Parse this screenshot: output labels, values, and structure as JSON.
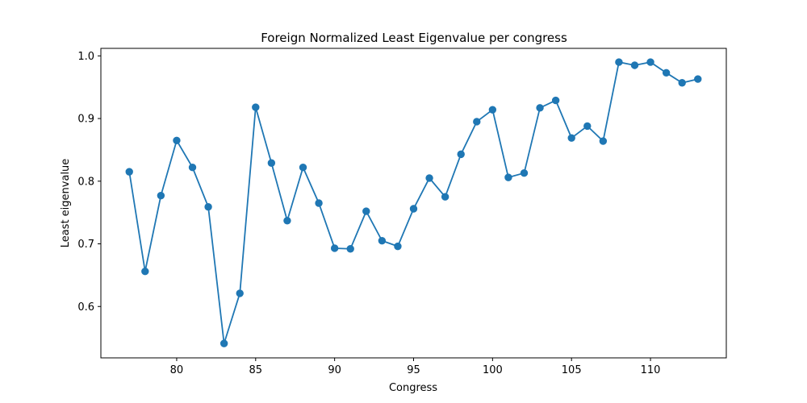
{
  "chart_data": {
    "type": "line",
    "title": "Foreign Normalized Least Eigenvalue per congress",
    "xlabel": "Congress",
    "ylabel": "Least eigenvalue",
    "xlim": [
      75.2,
      114.8
    ],
    "ylim": [
      0.518,
      1.012
    ],
    "xticks": [
      80,
      85,
      90,
      95,
      100,
      105,
      110
    ],
    "yticks": [
      0.6,
      0.7,
      0.8,
      0.9,
      1.0
    ],
    "ytick_labels": [
      "0.6",
      "0.7",
      "0.8",
      "0.9",
      "1.0"
    ],
    "grid": false,
    "series_color": "#1f77b4",
    "x": [
      77,
      78,
      79,
      80,
      81,
      82,
      83,
      84,
      85,
      86,
      87,
      88,
      89,
      90,
      91,
      92,
      93,
      94,
      95,
      96,
      97,
      98,
      99,
      100,
      101,
      102,
      103,
      104,
      105,
      106,
      107,
      108,
      109,
      110,
      111,
      112,
      113
    ],
    "y": [
      0.815,
      0.656,
      0.777,
      0.865,
      0.822,
      0.759,
      0.541,
      0.621,
      0.918,
      0.829,
      0.737,
      0.822,
      0.765,
      0.693,
      0.692,
      0.752,
      0.705,
      0.696,
      0.756,
      0.805,
      0.775,
      0.843,
      0.895,
      0.914,
      0.806,
      0.813,
      0.917,
      0.929,
      0.869,
      0.888,
      0.864,
      0.99,
      0.985,
      0.99,
      0.973,
      0.957,
      0.963
    ]
  }
}
